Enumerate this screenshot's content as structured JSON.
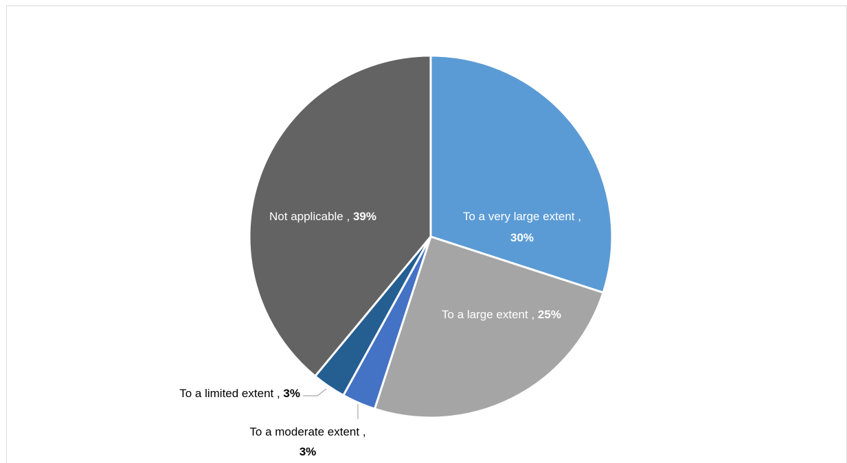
{
  "chart_data": {
    "type": "pie",
    "title": "",
    "slices": [
      {
        "label": "To a very large extent",
        "value": 30,
        "pct_text": "30%",
        "color": "#5b9bd5"
      },
      {
        "label": "To a large extent",
        "value": 25,
        "pct_text": "25%",
        "color": "#a5a5a5"
      },
      {
        "label": "To a moderate extent",
        "value": 3,
        "pct_text": "3%",
        "color": "#4472c4"
      },
      {
        "label": "To a limited extent",
        "value": 3,
        "pct_text": "3%",
        "color": "#255e91"
      },
      {
        "label": "Not applicable",
        "value": 39,
        "pct_text": "39%",
        "color": "#636363"
      }
    ],
    "legend": "none"
  }
}
